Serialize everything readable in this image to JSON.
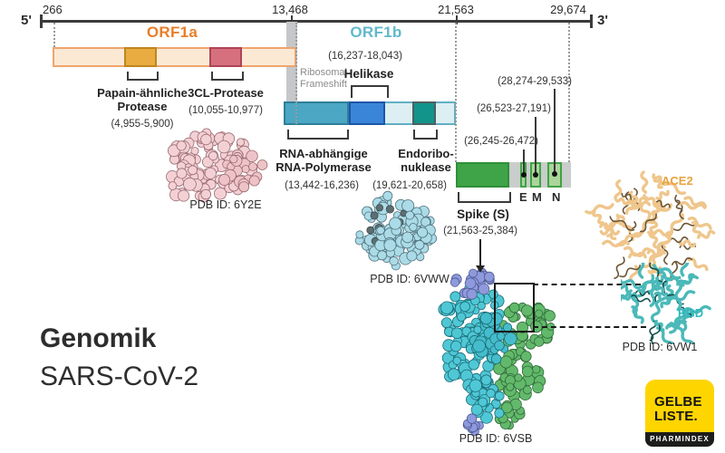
{
  "axis": {
    "five_prime": "5'",
    "three_prime": "3'",
    "p266": "266",
    "p13468": "13,468",
    "p21563": "21,563",
    "p29674": "29,674"
  },
  "orf1a": {
    "label": "ORF1a",
    "papain": {
      "line1": "Papain-ähnliche",
      "line2": "Protease",
      "range": "(4,955-5,900)"
    },
    "cl3": {
      "name": "3CL-Protease",
      "range": "(10,055-10,977)"
    }
  },
  "orf1b": {
    "label": "ORF1b",
    "frameshift": {
      "line1": "Ribosomal",
      "line2": "Frameshift"
    },
    "helikase": {
      "name": "Helikase",
      "range": "(16,237-18,043)"
    },
    "rdrp": {
      "line1": "RNA-abhängige",
      "line2": "RNA-Polymerase",
      "range": "(13,442-16,236)"
    },
    "endo": {
      "line1": "Endoribo-",
      "line2": "nuklease",
      "range": "(19,621-20,658)"
    }
  },
  "structural": {
    "spike": {
      "name": "Spike (S)",
      "range": "(21,563-25,384)"
    },
    "e": {
      "label": "E",
      "range": "(26,245-26,472)"
    },
    "m": {
      "label": "M",
      "range": "(26,523-27,191)"
    },
    "n": {
      "label": "N",
      "range": "(28,274-29,533)"
    }
  },
  "proteins": {
    "pdb_6y2e": "PDB ID: 6Y2E",
    "pdb_6vww": "PDB ID: 6VWW",
    "pdb_6vsb": "PDB ID: 6VSB",
    "pdb_6vw1": "PDB ID: 6VW1",
    "ace2": "ACE2",
    "rbd": "RBD"
  },
  "title": {
    "line1": "Genomik",
    "line2": "SARS-CoV-2"
  },
  "logo": {
    "line1": "GELBE",
    "line2": "LISTE.",
    "sub": "PHARMINDEX"
  },
  "colors": {
    "orf1a_accent": "#E87E2A",
    "orf1b_accent": "#62B8CC",
    "spike_green": "#3FA347",
    "ace2_accent": "#E8A33D",
    "rbd_accent": "#2FB8BE",
    "logo_yellow": "#FFD500"
  }
}
